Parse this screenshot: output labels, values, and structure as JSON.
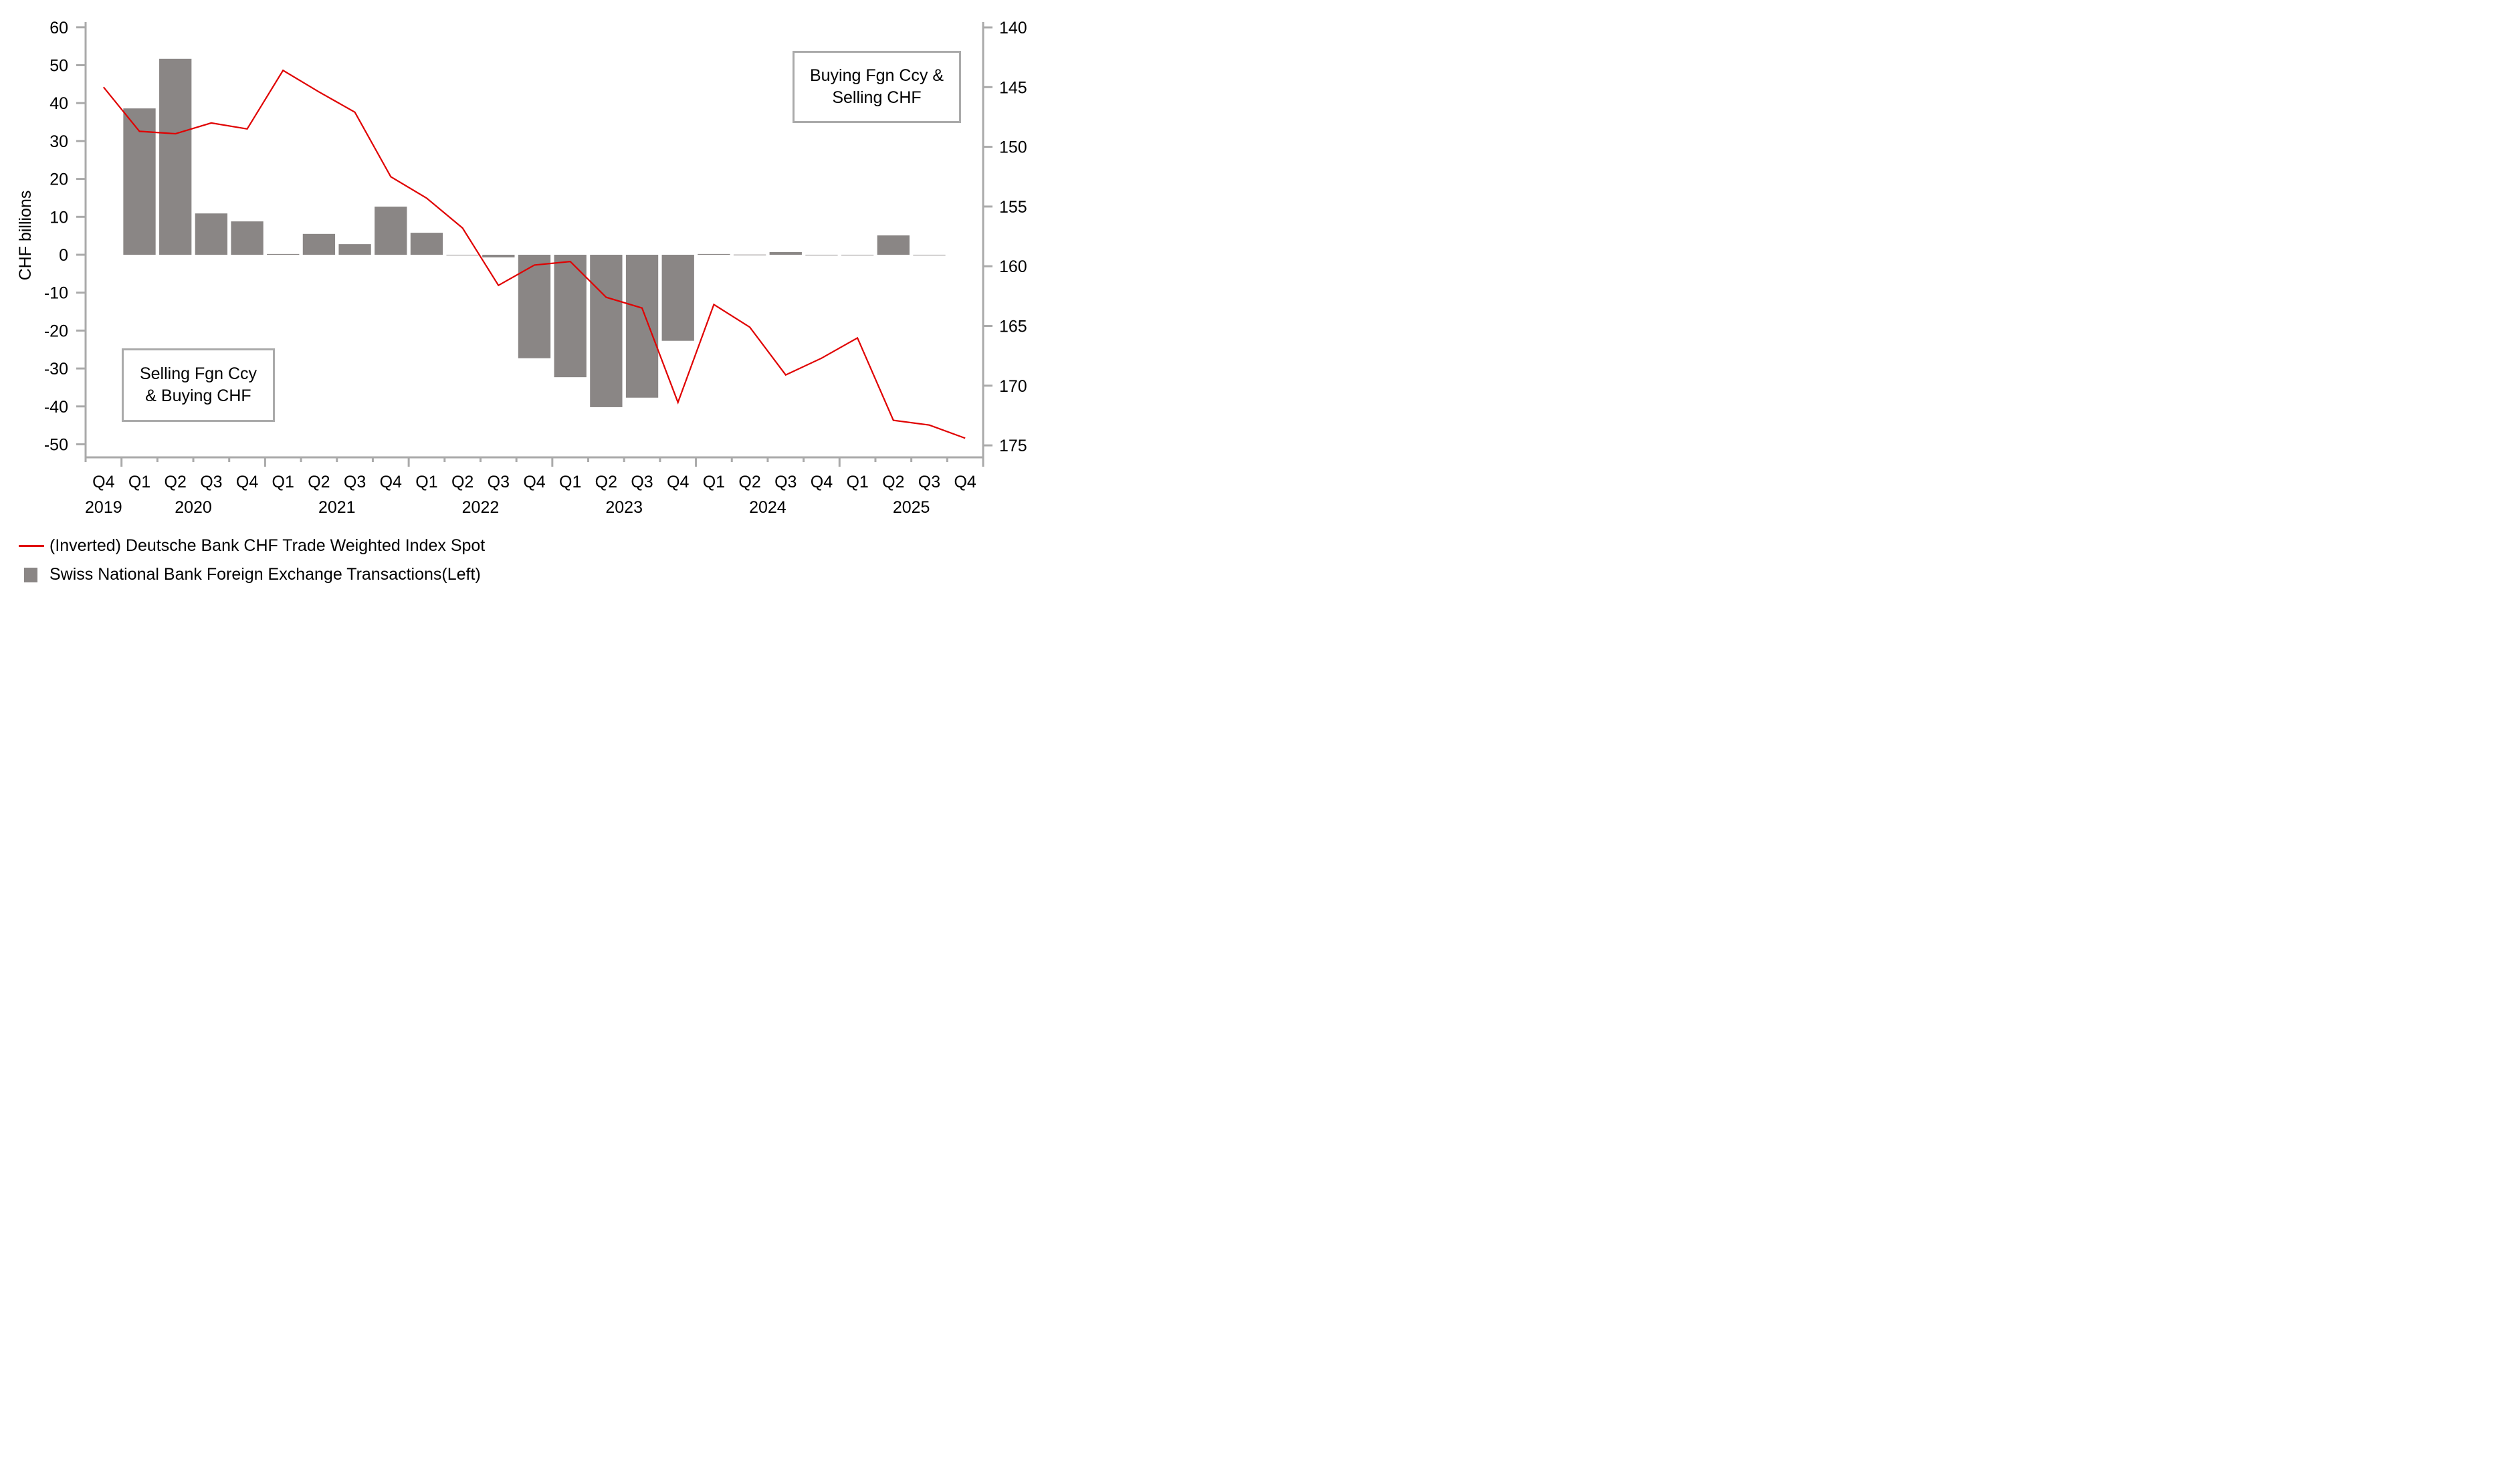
{
  "chart_data": {
    "type": "bar",
    "title": "",
    "xlabel": "",
    "ylabel": "CHF billions",
    "ylim": [
      -55,
      62
    ],
    "yticks": [
      60,
      50,
      40,
      30,
      20,
      10,
      0,
      -10,
      -20,
      -30,
      -40,
      -50
    ],
    "y2lim": [
      139.5,
      176.5
    ],
    "y2inverted": true,
    "y2ticks": [
      140,
      145,
      150,
      155,
      160,
      165,
      170,
      175
    ],
    "grid": false,
    "legend_position": "bottom-left",
    "categories": [
      "Q4 2019",
      "Q1 2020",
      "Q2 2020",
      "Q3 2020",
      "Q4 2020",
      "Q1 2021",
      "Q2 2021",
      "Q3 2021",
      "Q4 2021",
      "Q1 2022",
      "Q2 2022",
      "Q3 2022",
      "Q4 2022",
      "Q1 2023",
      "Q2 2023",
      "Q3 2023",
      "Q4 2023",
      "Q1 2024",
      "Q2 2024",
      "Q3 2024",
      "Q4 2024",
      "Q1 2025",
      "Q2 2025",
      "Q3 2025",
      "Q4 2025"
    ],
    "quarter_labels": [
      "Q4",
      "Q1",
      "Q2",
      "Q3",
      "Q4",
      "Q1",
      "Q2",
      "Q3",
      "Q4",
      "Q1",
      "Q2",
      "Q3",
      "Q4",
      "Q1",
      "Q2",
      "Q3",
      "Q4",
      "Q1",
      "Q2",
      "Q3",
      "Q4",
      "Q1",
      "Q2",
      "Q3",
      "Q4"
    ],
    "year_labels": [
      {
        "label": "2019",
        "center_index": 0
      },
      {
        "label": "2020",
        "center_index": 2.5
      },
      {
        "label": "2021",
        "center_index": 6.5
      },
      {
        "label": "2022",
        "center_index": 10.5
      },
      {
        "label": "2023",
        "center_index": 14.5
      },
      {
        "label": "2024",
        "center_index": 18.5
      },
      {
        "label": "2025",
        "center_index": 22.5
      }
    ],
    "series": [
      {
        "name": "Swiss National Bank Foreign Exchange Transactions(Left)",
        "type": "bar",
        "axis": "left",
        "color": "#8a8685",
        "values": [
          null,
          38.6,
          51.7,
          10.9,
          8.8,
          0.2,
          5.5,
          2.8,
          12.7,
          5.8,
          0.0,
          -0.7,
          -27.3,
          -32.3,
          -40.2,
          -37.7,
          -22.7,
          0.2,
          0.05,
          0.7,
          0.0,
          0.0,
          5.1,
          0.0,
          null
        ]
      },
      {
        "name": "(Inverted) Deutsche Bank CHF Trade Weighted Index Spot",
        "type": "line",
        "axis": "right",
        "color": "#e00000",
        "values": [
          145.0,
          148.7,
          148.9,
          148.0,
          148.5,
          143.6,
          145.4,
          147.1,
          152.5,
          154.3,
          156.8,
          161.6,
          159.9,
          159.6,
          162.6,
          163.5,
          171.4,
          163.2,
          165.1,
          169.1,
          167.7,
          166.0,
          172.9,
          173.3,
          174.4
        ]
      }
    ],
    "annotations": [
      {
        "text_line1": "Buying Fgn Ccy &",
        "text_line2": "Selling CHF",
        "position": "top-right"
      },
      {
        "text_line1": "Selling Fgn Ccy",
        "text_line2": "& Buying CHF",
        "position": "bottom-left"
      }
    ]
  },
  "legend": {
    "line_label": "(Inverted) Deutsche Bank CHF Trade Weighted Index Spot",
    "bar_label": "Swiss National Bank Foreign Exchange Transactions(Left)"
  }
}
